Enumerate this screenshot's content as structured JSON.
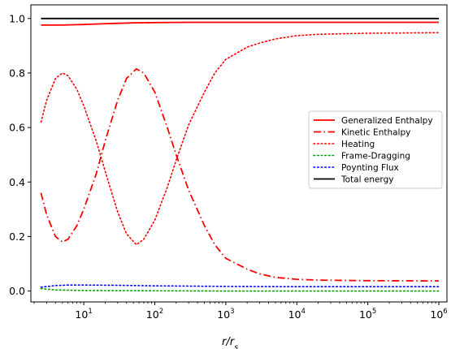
{
  "chart_data": {
    "type": "line",
    "title": "",
    "xlabel": "r/r_s",
    "xlabel_main": "r/r",
    "xlabel_sub": "s",
    "ylabel": "",
    "xscale": "log",
    "xlim": [
      1.8,
      1300000
    ],
    "ylim": [
      -0.04,
      1.05
    ],
    "x_ticks": [
      {
        "value": 10,
        "base": "10",
        "exp": "1"
      },
      {
        "value": 100,
        "base": "10",
        "exp": "2"
      },
      {
        "value": 1000,
        "base": "10",
        "exp": "3"
      },
      {
        "value": 10000,
        "base": "10",
        "exp": "4"
      },
      {
        "value": 100000,
        "base": "10",
        "exp": "5"
      },
      {
        "value": 1000000,
        "base": "10",
        "exp": "6"
      }
    ],
    "y_ticks": [
      {
        "value": 0.0,
        "label": "0.0"
      },
      {
        "value": 0.2,
        "label": "0.2"
      },
      {
        "value": 0.4,
        "label": "0.4"
      },
      {
        "value": 0.6,
        "label": "0.6"
      },
      {
        "value": 0.8,
        "label": "0.8"
      },
      {
        "value": 1.0,
        "label": "1.0"
      }
    ],
    "grid": false,
    "legend_position": "center-right",
    "series": [
      {
        "name": "Generalized Enthalpy",
        "color": "#ff0000",
        "style": "solid",
        "x": [
          2.5,
          5,
          10,
          20,
          50,
          100,
          300,
          1000,
          10000,
          100000,
          1000000
        ],
        "y": [
          0.976,
          0.976,
          0.978,
          0.981,
          0.984,
          0.985,
          0.986,
          0.986,
          0.986,
          0.986,
          0.986
        ]
      },
      {
        "name": "Kinetic Enthalpy",
        "color": "#ff0000",
        "style": "dashdot",
        "x": [
          2.5,
          3,
          4,
          5,
          6,
          8,
          10,
          15,
          20,
          30,
          40,
          55,
          70,
          100,
          150,
          200,
          300,
          500,
          700,
          1000,
          2000,
          3000,
          5000,
          10000,
          20000,
          100000,
          1000000
        ],
        "y": [
          0.36,
          0.28,
          0.2,
          0.18,
          0.19,
          0.24,
          0.3,
          0.43,
          0.55,
          0.7,
          0.78,
          0.815,
          0.8,
          0.73,
          0.6,
          0.5,
          0.37,
          0.24,
          0.17,
          0.12,
          0.08,
          0.063,
          0.05,
          0.043,
          0.04,
          0.038,
          0.037
        ]
      },
      {
        "name": "Heating",
        "color": "#ff0000",
        "style": "dotted",
        "x": [
          2.5,
          3,
          4,
          5,
          6,
          8,
          10,
          15,
          20,
          30,
          40,
          55,
          70,
          100,
          150,
          200,
          300,
          500,
          700,
          1000,
          2000,
          3000,
          5000,
          10000,
          20000,
          100000,
          1000000
        ],
        "y": [
          0.62,
          0.7,
          0.78,
          0.8,
          0.79,
          0.74,
          0.68,
          0.55,
          0.44,
          0.29,
          0.21,
          0.17,
          0.19,
          0.26,
          0.38,
          0.48,
          0.61,
          0.73,
          0.8,
          0.85,
          0.895,
          0.91,
          0.925,
          0.937,
          0.942,
          0.946,
          0.948
        ]
      },
      {
        "name": "Frame-Dragging",
        "color": "#00a000",
        "style": "dotted",
        "x": [
          2.5,
          4,
          10,
          100,
          1000,
          100000,
          1000000
        ],
        "y": [
          0.009,
          0.004,
          0.002,
          0.001,
          0.0,
          0.0,
          0.0
        ]
      },
      {
        "name": "Poynting Flux",
        "color": "#0000ff",
        "style": "dotted",
        "x": [
          2.5,
          4,
          6,
          10,
          30,
          100,
          1000,
          10000,
          100000,
          1000000
        ],
        "y": [
          0.014,
          0.02,
          0.022,
          0.022,
          0.021,
          0.019,
          0.017,
          0.016,
          0.016,
          0.016
        ]
      },
      {
        "name": "Total energy",
        "color": "#000000",
        "style": "solid",
        "x": [
          2.5,
          1000000
        ],
        "y": [
          1.0,
          1.0
        ]
      }
    ]
  }
}
